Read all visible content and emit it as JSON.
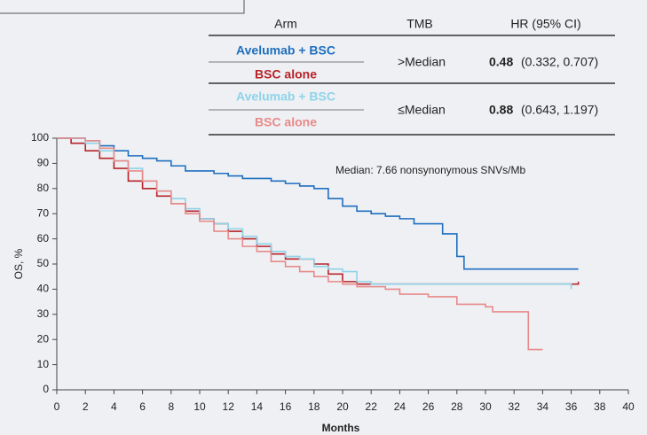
{
  "chart_data": {
    "type": "line",
    "step": true,
    "table": {
      "header": [
        "Arm",
        "TMB",
        "HR (95% CI)"
      ],
      "rows": [
        {
          "tmb": ">Median",
          "hr": 0.48,
          "ci": "(0.332, 0.707)"
        },
        {
          "tmb": "≤Median",
          "hr": 0.88,
          "ci": "(0.643, 1.197)"
        }
      ]
    },
    "annotation": "Median: 7.66 nonsynonymous SNVs/Mb",
    "xlabel": "Months",
    "ylabel": "OS, %",
    "xlim": [
      0,
      40
    ],
    "ylim": [
      0,
      100
    ],
    "xticks": [
      0,
      2,
      4,
      6,
      8,
      10,
      12,
      14,
      16,
      18,
      20,
      22,
      24,
      26,
      28,
      30,
      32,
      34,
      36,
      38,
      40
    ],
    "yticks": [
      0,
      10,
      20,
      30,
      40,
      50,
      60,
      70,
      80,
      90,
      100
    ],
    "series": [
      {
        "name": "Avelumab + BSC",
        "color": "#1f6fc0",
        "x": [
          0,
          2,
          3,
          4,
          5,
          6,
          7,
          8,
          9,
          10,
          11,
          12,
          13,
          14,
          15,
          16,
          17,
          18,
          19,
          20,
          21,
          22,
          23,
          24,
          25,
          27,
          28,
          28.5,
          36.5
        ],
        "values": [
          100,
          99,
          97,
          95,
          93,
          92,
          91,
          89,
          87,
          87,
          86,
          85,
          84,
          84,
          83,
          82,
          81,
          80,
          76,
          73,
          71,
          70,
          69,
          68,
          66,
          62,
          53,
          48,
          48
        ]
      },
      {
        "name": "BSC alone",
        "color": "#b8242a",
        "x": [
          0,
          1,
          2,
          3,
          4,
          5,
          6,
          7,
          8,
          9,
          10,
          11,
          12,
          13,
          14,
          15,
          16,
          17,
          18,
          19,
          20,
          21,
          36.5
        ],
        "values": [
          100,
          98,
          95,
          92,
          88,
          83,
          80,
          77,
          74,
          71,
          68,
          66,
          63,
          60,
          57,
          54,
          52,
          52,
          50,
          46,
          43,
          42,
          43
        ]
      },
      {
        "name": "Avelumab + BSC",
        "color": "#8fd3ea",
        "x": [
          0,
          2,
          3,
          4,
          5,
          6,
          7,
          8,
          9,
          10,
          11,
          12,
          13,
          14,
          15,
          16,
          17,
          18,
          19,
          20,
          21,
          22,
          36
        ],
        "values": [
          100,
          98,
          95,
          91,
          88,
          83,
          79,
          76,
          72,
          68,
          66,
          64,
          61,
          58,
          55,
          53,
          52,
          49,
          48,
          47,
          43,
          42,
          40
        ]
      },
      {
        "name": "BSC alone",
        "color": "#e88a8a",
        "x": [
          0,
          2,
          3,
          4,
          5,
          6,
          7,
          8,
          9,
          10,
          11,
          12,
          13,
          14,
          15,
          16,
          17,
          18,
          19,
          20,
          21,
          23,
          24,
          26,
          28,
          30,
          30.5,
          33,
          34
        ],
        "values": [
          100,
          99,
          96,
          91,
          87,
          83,
          79,
          74,
          70,
          67,
          63,
          60,
          57,
          55,
          51,
          49,
          47,
          45,
          43,
          42,
          41,
          40,
          38,
          37,
          34,
          33,
          31,
          16,
          16
        ]
      }
    ]
  }
}
